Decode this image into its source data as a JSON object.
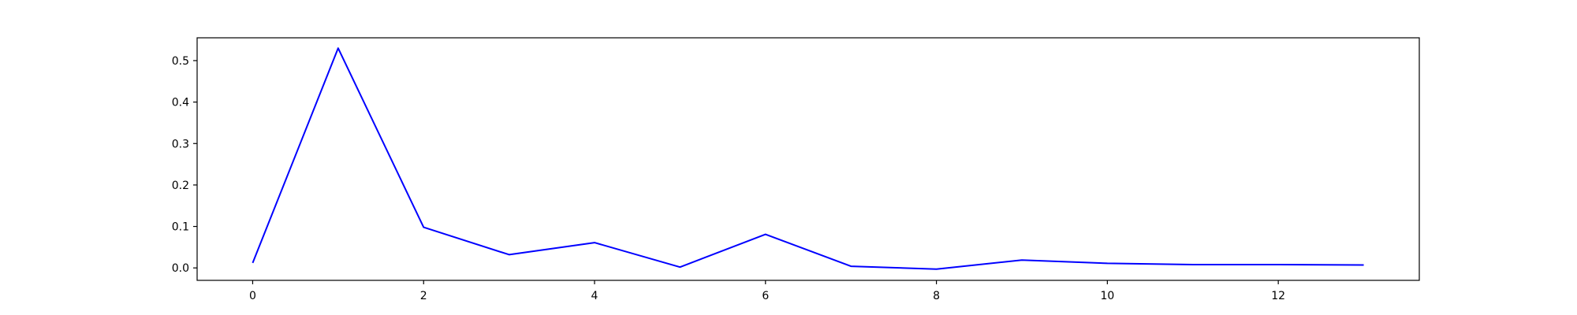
{
  "chart_data": {
    "type": "line",
    "title": "",
    "xlabel": "",
    "ylabel": "",
    "xlim": [
      -0.65,
      13.65
    ],
    "ylim": [
      -0.03,
      0.555
    ],
    "x_ticks": [
      0,
      2,
      4,
      6,
      8,
      10,
      12
    ],
    "x_tick_labels": [
      "0",
      "2",
      "4",
      "6",
      "8",
      "10",
      "12"
    ],
    "y_ticks": [
      0.0,
      0.1,
      0.2,
      0.3,
      0.4,
      0.5
    ],
    "y_tick_labels": [
      "0.0",
      "0.1",
      "0.2",
      "0.3",
      "0.4",
      "0.5"
    ],
    "grid": false,
    "legend": "none",
    "series": [
      {
        "color": "#0000ff",
        "x": [
          0,
          1,
          2,
          3,
          4,
          5,
          6,
          7,
          8,
          9,
          10,
          11,
          12,
          13
        ],
        "values": [
          0.012,
          0.53,
          0.098,
          0.032,
          0.061,
          0.002,
          0.081,
          0.004,
          -0.003,
          0.019,
          0.011,
          0.008,
          0.008,
          0.007
        ]
      }
    ]
  }
}
